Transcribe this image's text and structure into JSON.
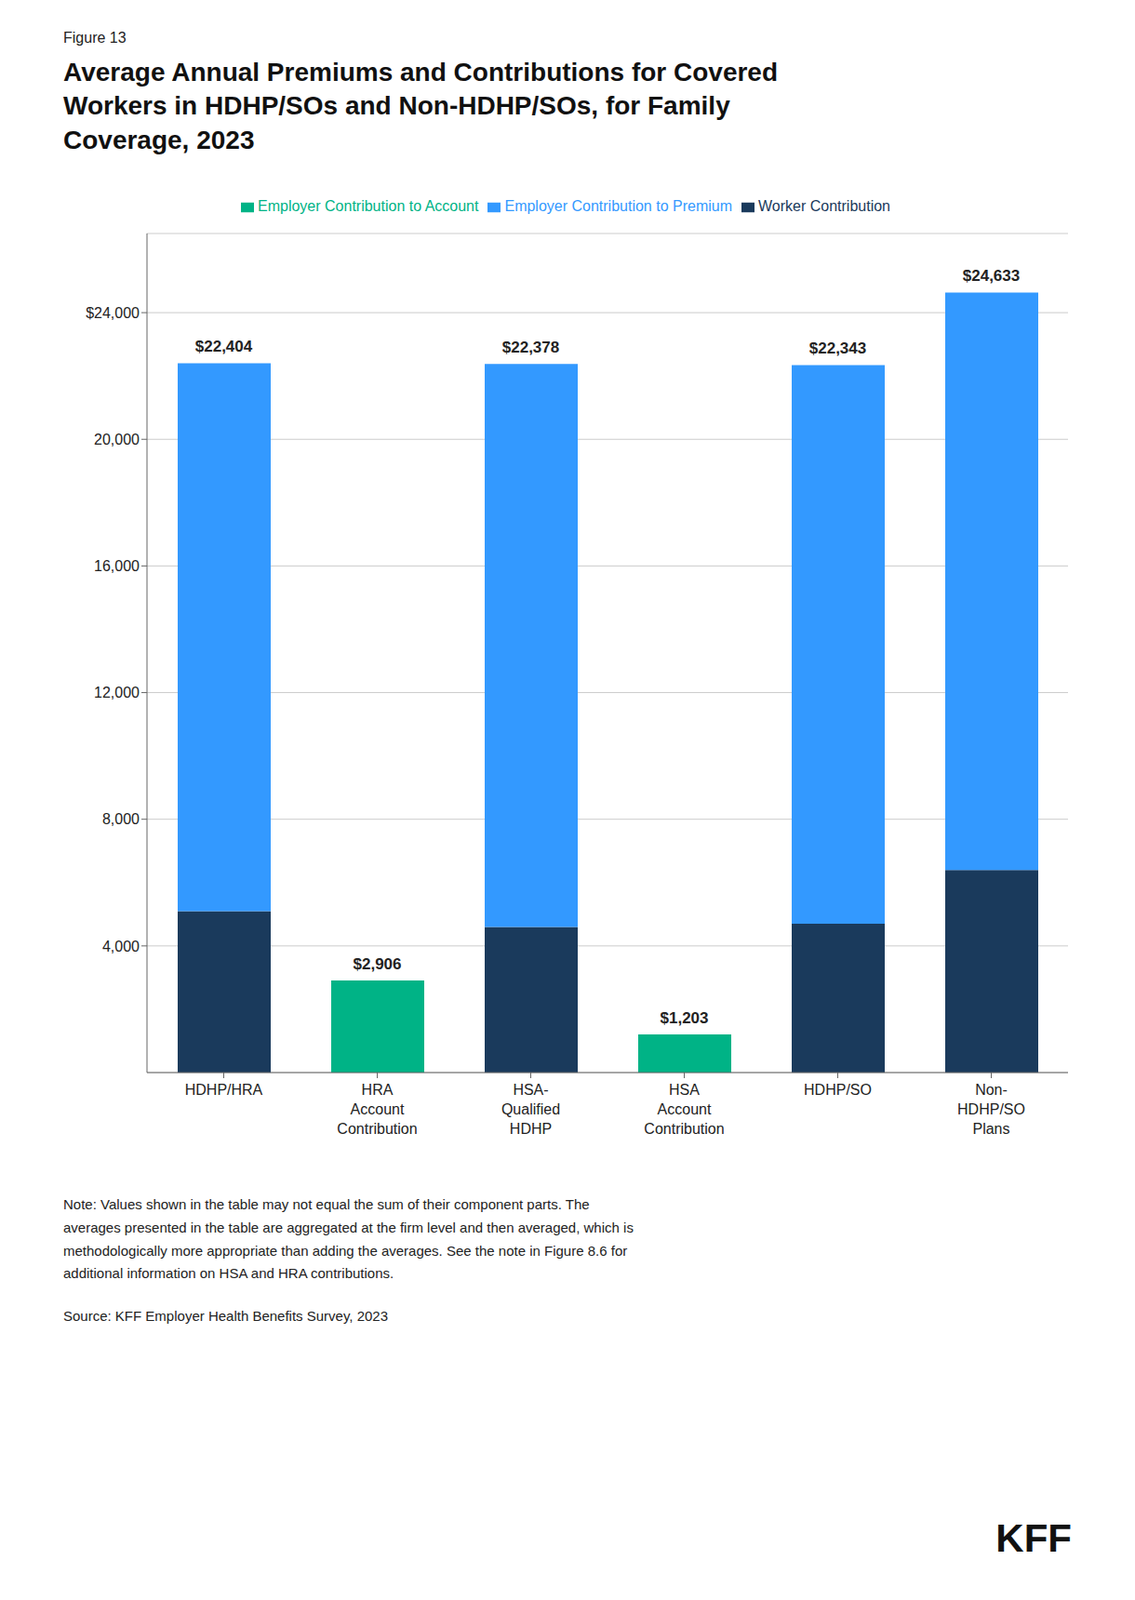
{
  "chart_data": {
    "type": "bar",
    "stacked": true,
    "subtitle": "Figure 13",
    "title": "Average Annual Premiums and Contributions for Covered\nWorkers in HDHP/SOs and Non-HDHP/SOs, for Family\nCoverage, 2023",
    "categories": [
      "HDHP/HRA",
      "HRA\nAccount\nContribution",
      "HSA-\nQualified\nHDHP",
      "HSA\nAccount\nContribution",
      "HDHP/SO",
      "Non-\nHDHP/SO\nPlans"
    ],
    "series": [
      {
        "name": "Worker Contribution",
        "color": "#1a3a5c",
        "values": [
          5100,
          0,
          4600,
          0,
          4700,
          6400
        ]
      },
      {
        "name": "Employer Contribution to Premium",
        "color": "#3399ff",
        "values": [
          17304,
          0,
          17778,
          0,
          17643,
          18233
        ]
      },
      {
        "name": "Employer Contribution to Account",
        "color": "#00b386",
        "values": [
          0,
          2906,
          0,
          1203,
          0,
          0
        ]
      }
    ],
    "totals": [
      22404,
      2906,
      22378,
      1203,
      22343,
      24633
    ],
    "total_labels": [
      "$22,404",
      "$2,906",
      "$22,378",
      "$1,203",
      "$22,343",
      "$24,633"
    ],
    "ylim": [
      0,
      26500
    ],
    "yticks": [
      {
        "value": 4000,
        "label": "4,000"
      },
      {
        "value": 8000,
        "label": "8,000"
      },
      {
        "value": 12000,
        "label": "12,000"
      },
      {
        "value": 16000,
        "label": "16,000"
      },
      {
        "value": 20000,
        "label": "20,000"
      },
      {
        "value": 24000,
        "label": "$24,000"
      }
    ],
    "grid": true,
    "legend": "top",
    "annotations": [
      "Note: Values shown in the table may not equal the sum of their component parts. The\naverages presented in the table are aggregated at the firm level and then averaged, which is\nmethodologically more appropriate than adding the averages. See the note in Figure 8.6 for\nadditional information on HSA and HRA contributions.",
      "Source: KFF Employer Health Benefits Survey, 2023",
      "KFF"
    ]
  }
}
